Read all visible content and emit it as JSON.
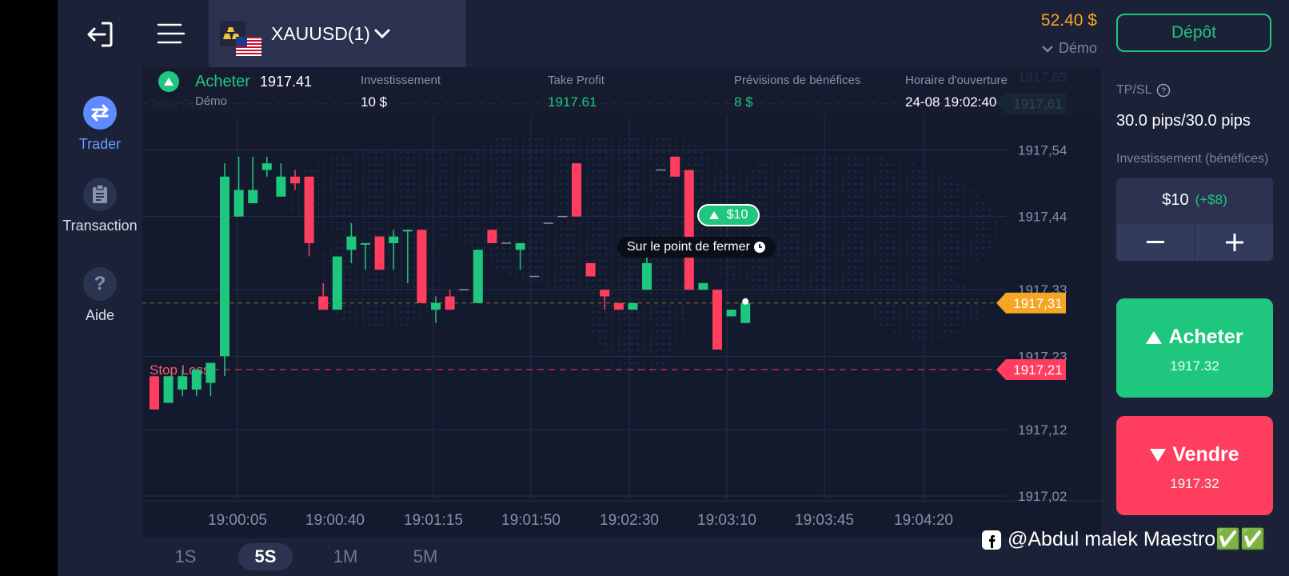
{
  "topbar": {
    "asset": "XAUUSD(1)",
    "balance": "52.40 $",
    "account_type": "Démo",
    "deposit_label": "Dépôt"
  },
  "nav": {
    "items": [
      {
        "label": "Trader",
        "icon": "swap-arrows-icon",
        "active": true
      },
      {
        "label": "Transaction",
        "icon": "clipboard-icon",
        "active": false
      },
      {
        "label": "Aide",
        "icon": "question-icon",
        "active": false
      }
    ]
  },
  "trade_bar": {
    "direction": "Acheter",
    "price": "1917.41",
    "account": "Démo",
    "investment_label": "Investissement",
    "investment_value": "10 $",
    "take_profit_label": "Take Profit",
    "take_profit_value": "1917.61",
    "forecast_label": "Prévisions de bénéfices",
    "forecast_value": "8 $",
    "open_time_label": "Horaire d'ouverture",
    "open_time_value": "24-08 19:02:40"
  },
  "chart": {
    "take_profit_line_label": "Take Profit",
    "stop_loss_line_label": "Stop Loss",
    "take_profit_tag": "1917,61",
    "current_price_tag": "1917,31",
    "stop_loss_tag": "1917,21",
    "position_badge": "$10",
    "closing_tooltip": "Sur le point de fermer",
    "colors": {
      "up": "#1fc77e",
      "down": "#ff3d5f",
      "current": "#f5a623"
    }
  },
  "chart_data": {
    "type": "candlestick",
    "y_ticks": [
      "1917,65",
      "1917,54",
      "1917,44",
      "1917,33",
      "1917,23",
      "1917,12",
      "1917,02"
    ],
    "y_tick_values": [
      1917.65,
      1917.54,
      1917.44,
      1917.33,
      1917.23,
      1917.12,
      1917.02
    ],
    "x_ticks": [
      "19:00:05",
      "19:00:40",
      "19:01:15",
      "19:01:50",
      "19:02:30",
      "19:03:10",
      "19:03:45",
      "19:04:20"
    ],
    "take_profit": 1917.61,
    "current_price": 1917.31,
    "stop_loss": 1917.21,
    "candles": [
      [
        1917.2,
        1917.15,
        1917.2,
        1917.15
      ],
      [
        1917.16,
        1917.2,
        1917.2,
        1917.16
      ],
      [
        1917.18,
        1917.2,
        1917.21,
        1917.17
      ],
      [
        1917.18,
        1917.21,
        1917.21,
        1917.17
      ],
      [
        1917.19,
        1917.22,
        1917.22,
        1917.17
      ],
      [
        1917.23,
        1917.5,
        1917.52,
        1917.2
      ],
      [
        1917.44,
        1917.48,
        1917.53,
        1917.44
      ],
      [
        1917.46,
        1917.48,
        1917.53,
        1917.46
      ],
      [
        1917.51,
        1917.52,
        1917.53,
        1917.5
      ],
      [
        1917.47,
        1917.5,
        1917.52,
        1917.47
      ],
      [
        1917.5,
        1917.49,
        1917.51,
        1917.48
      ],
      [
        1917.5,
        1917.4,
        1917.5,
        1917.38
      ],
      [
        1917.32,
        1917.3,
        1917.34,
        1917.3
      ],
      [
        1917.3,
        1917.38,
        1917.38,
        1917.3
      ],
      [
        1917.39,
        1917.41,
        1917.43,
        1917.37
      ],
      [
        1917.4,
        1917.4,
        1917.4,
        1917.36
      ],
      [
        1917.41,
        1917.36,
        1917.41,
        1917.36
      ],
      [
        1917.4,
        1917.41,
        1917.42,
        1917.36
      ],
      [
        1917.42,
        1917.42,
        1917.42,
        1917.34
      ],
      [
        1917.42,
        1917.31,
        1917.42,
        1917.31
      ],
      [
        1917.3,
        1917.31,
        1917.32,
        1917.28
      ],
      [
        1917.32,
        1917.3,
        1917.33,
        1917.3
      ],
      [
        1917.33,
        1917.33,
        1917.33,
        1917.33
      ],
      [
        1917.31,
        1917.39,
        1917.39,
        1917.31
      ],
      [
        1917.42,
        1917.4,
        1917.42,
        1917.4
      ],
      [
        1917.4,
        1917.4,
        1917.4,
        1917.4
      ],
      [
        1917.39,
        1917.4,
        1917.4,
        1917.36
      ],
      [
        1917.35,
        1917.35,
        1917.35,
        1917.35
      ],
      [
        1917.43,
        1917.43,
        1917.43,
        1917.43
      ],
      [
        1917.44,
        1917.44,
        1917.44,
        1917.44
      ],
      [
        1917.52,
        1917.44,
        1917.52,
        1917.44
      ],
      [
        1917.37,
        1917.35,
        1917.37,
        1917.35
      ],
      [
        1917.33,
        1917.32,
        1917.33,
        1917.3
      ],
      [
        1917.31,
        1917.3,
        1917.31,
        1917.3
      ],
      [
        1917.3,
        1917.31,
        1917.31,
        1917.3
      ],
      [
        1917.33,
        1917.37,
        1917.4,
        1917.33
      ],
      [
        1917.51,
        1917.51,
        1917.51,
        1917.51
      ],
      [
        1917.53,
        1917.5,
        1917.53,
        1917.5
      ],
      [
        1917.51,
        1917.33,
        1917.51,
        1917.33
      ],
      [
        1917.33,
        1917.34,
        1917.34,
        1917.33
      ],
      [
        1917.33,
        1917.24,
        1917.33,
        1917.24
      ],
      [
        1917.29,
        1917.3,
        1917.3,
        1917.29
      ],
      [
        1917.28,
        1917.31,
        1917.31,
        1917.28
      ]
    ]
  },
  "timeframes": [
    {
      "label": "1S",
      "active": false
    },
    {
      "label": "5S",
      "active": true
    },
    {
      "label": "1M",
      "active": false
    },
    {
      "label": "5M",
      "active": false
    }
  ],
  "right_panel": {
    "tpsl_label": "TP/SL",
    "tpsl_value": "30.0 pips/30.0 pips",
    "investment_label": "Investissement (bénéfices)",
    "investment_amount": "$10",
    "investment_profit": "(+$8)",
    "buy_label": "Acheter",
    "buy_price": "1917.32",
    "sell_label": "Vendre",
    "sell_price": "1917.32"
  },
  "watermark": "@Abdul malek Maestro✅✅"
}
